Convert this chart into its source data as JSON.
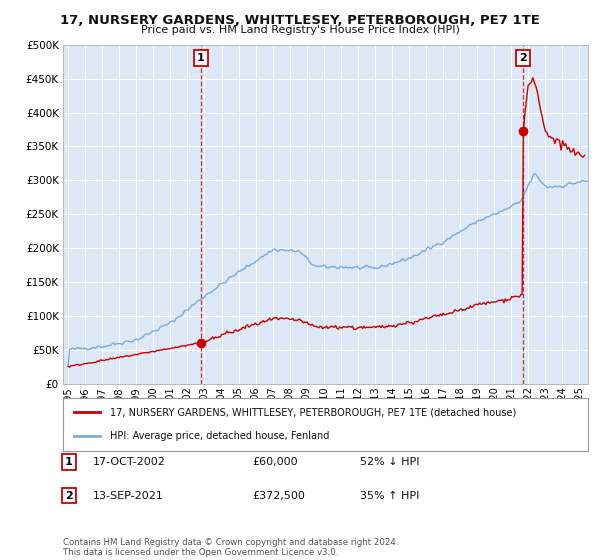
{
  "title": "17, NURSERY GARDENS, WHITTLESEY, PETERBOROUGH, PE7 1TE",
  "subtitle": "Price paid vs. HM Land Registry's House Price Index (HPI)",
  "ytick_values": [
    0,
    50000,
    100000,
    150000,
    200000,
    250000,
    300000,
    350000,
    400000,
    450000,
    500000
  ],
  "ytick_labels": [
    "£0",
    "£50K",
    "£100K",
    "£150K",
    "£200K",
    "£250K",
    "£300K",
    "£350K",
    "£400K",
    "£450K",
    "£500K"
  ],
  "ylim": [
    0,
    500000
  ],
  "xlim_start": 1994.7,
  "xlim_end": 2025.5,
  "hpi_color": "#7aacdc",
  "property_color": "#cc0000",
  "bg_color": "#dce8f5",
  "fig_color": "#ffffff",
  "grid_color": "#ffffff",
  "sale1_x": 2002.79,
  "sale1_y": 60000,
  "sale2_x": 2021.71,
  "sale2_y": 372500,
  "legend_property": "17, NURSERY GARDENS, WHITTLESEY, PETERBOROUGH, PE7 1TE (detached house)",
  "legend_hpi": "HPI: Average price, detached house, Fenland",
  "annotation1_label": "1",
  "annotation1_date": "17-OCT-2002",
  "annotation1_price": "£60,000",
  "annotation1_hpi": "52% ↓ HPI",
  "annotation2_label": "2",
  "annotation2_date": "13-SEP-2021",
  "annotation2_price": "£372,500",
  "annotation2_hpi": "35% ↑ HPI",
  "footer": "Contains HM Land Registry data © Crown copyright and database right 2024.\nThis data is licensed under the Open Government Licence v3.0."
}
